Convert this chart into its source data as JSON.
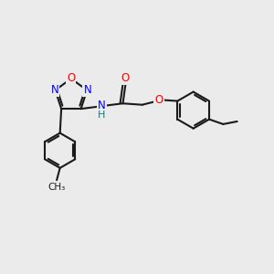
{
  "background_color": "#ebebeb",
  "bond_color": "#1a1a1a",
  "bond_width": 1.5,
  "atom_colors": {
    "N": "#0000ff",
    "O": "#ff0000",
    "C": "#1a1a1a"
  },
  "font_size_atom": 8.5,
  "font_size_NH": 8.0,
  "figsize": [
    3.0,
    3.0
  ],
  "dpi": 100,
  "xlim": [
    0,
    10
  ],
  "ylim": [
    0,
    10
  ]
}
